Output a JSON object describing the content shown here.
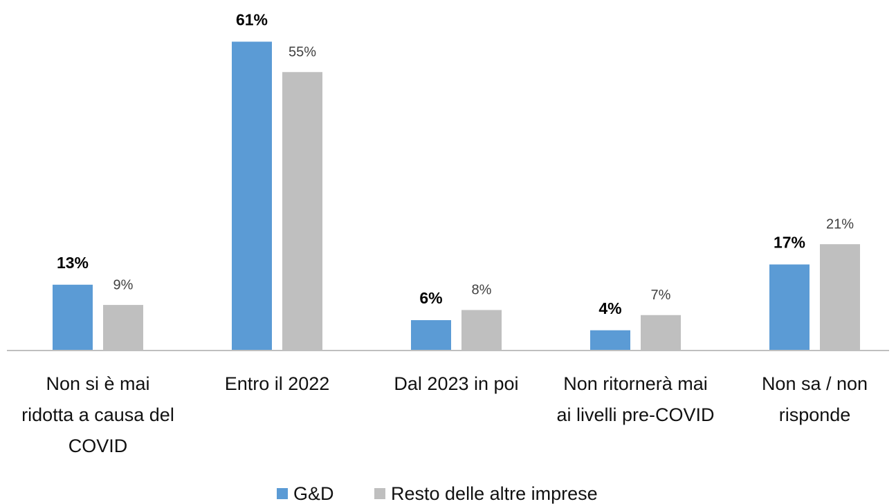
{
  "chart_data": {
    "type": "bar",
    "categories": [
      "Non si è mai ridotta a causa del COVID",
      "Entro il 2022",
      "Dal 2023 in poi",
      "Non ritornerà mai ai livelli pre-COVID",
      "Non sa / non risponde"
    ],
    "series": [
      {
        "name": "G&D",
        "color": "#5b9bd5",
        "values": [
          13,
          61,
          6,
          4,
          17
        ],
        "value_labels": [
          "13%",
          "61%",
          "6%",
          "4%",
          "17%"
        ]
      },
      {
        "name": "Resto delle altre imprese",
        "color": "#bfbfbf",
        "values": [
          9,
          55,
          8,
          7,
          21
        ],
        "value_labels": [
          "9%",
          "55%",
          "8%",
          "7%",
          "21%"
        ]
      }
    ],
    "ylim": [
      0,
      65
    ]
  }
}
